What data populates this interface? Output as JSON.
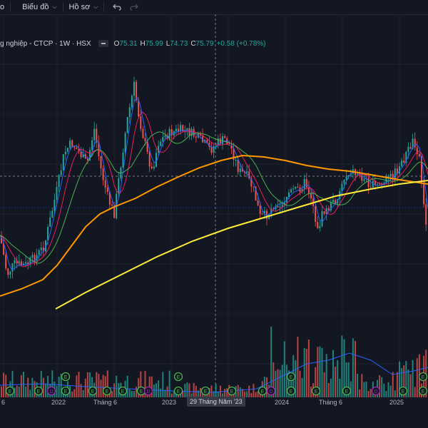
{
  "toolbar": {
    "left_fragment": "o",
    "chart_menu": "Biểu đồ",
    "profile_menu": "Hồ sơ",
    "undo_icon": "undo-icon",
    "redo_icon": "redo-icon"
  },
  "legend": {
    "symbol": "g nghiệp - CTCP · 1W · HSX",
    "o_key": "O",
    "o_val": "75.31",
    "h_key": "H",
    "h_val": "75.99",
    "l_key": "L",
    "l_val": "74.73",
    "c_key": "C",
    "c_val": "75.79",
    "change": "+0.58 (+0.78%)"
  },
  "xaxis": {
    "labels": [
      "6",
      "2022",
      "Tháng 6",
      "2023",
      "2024",
      "Tháng 6",
      "2025"
    ],
    "crosshair_label": "29 Tháng Năm '23"
  },
  "colors": {
    "up": "#26a69a",
    "down": "#ef5350",
    "ma_blue": "#2962ff",
    "ma_red": "#e91e63",
    "ma_green": "#4caf50",
    "ma_orange": "#ff9800",
    "ma_yellow": "#ffeb3b",
    "event_badge": "#4caf50",
    "dividend_badge": "#9c27b0"
  },
  "events": {
    "earnings_letter": "E",
    "dividend_letter": "D"
  }
}
